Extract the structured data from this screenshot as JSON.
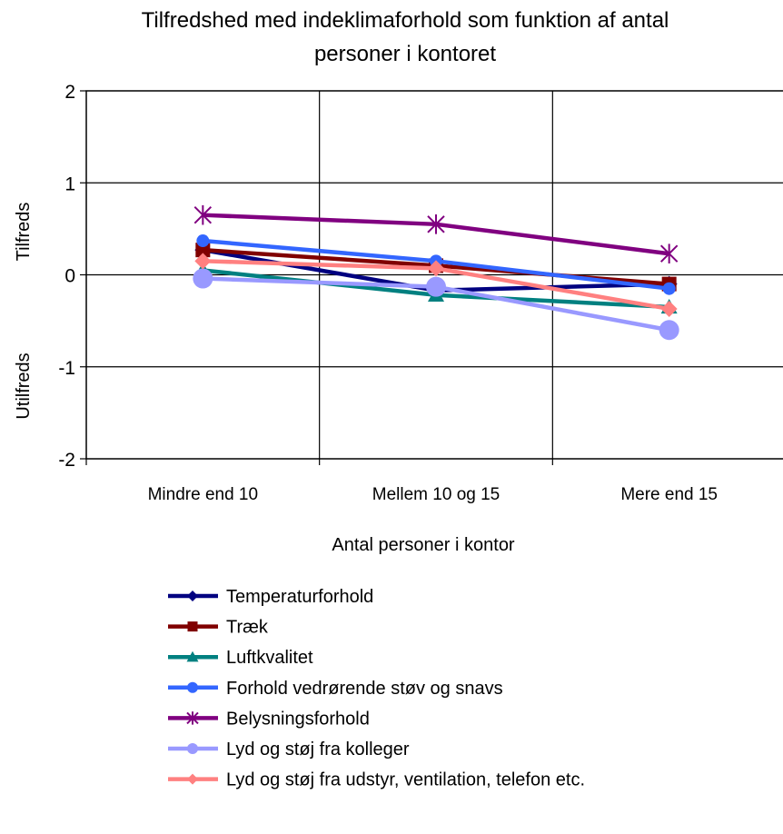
{
  "chart_data": {
    "type": "line",
    "title_lines": [
      "Tilfredshed med indeklimaforhold som funktion af antal",
      "personer i kontoret"
    ],
    "xlabel": "Antal personer i kontor",
    "ylabel_top": "Tilfreds",
    "ylabel_bottom": "Utilfreds",
    "categories": [
      "Mindre end 10",
      "Mellem 10 og 15",
      "Mere end 15"
    ],
    "ylim": [
      -2,
      2
    ],
    "yticks": [
      2,
      1,
      0,
      -1,
      -2
    ],
    "ytick_labels": [
      "2",
      "1",
      "0",
      "-1",
      "-2"
    ],
    "grid": true,
    "legend_position": "bottom",
    "series": [
      {
        "name": "Temperaturforhold",
        "values": [
          0.27,
          -0.17,
          -0.1
        ],
        "color": "#000080",
        "marker": "diamond"
      },
      {
        "name": "Træk",
        "values": [
          0.27,
          0.1,
          -0.1
        ],
        "color": "#800000",
        "marker": "square"
      },
      {
        "name": "Luftkvalitet",
        "values": [
          0.05,
          -0.22,
          -0.35
        ],
        "color": "#008080",
        "marker": "triangle"
      },
      {
        "name": "Forhold vedrørende støv og snavs",
        "values": [
          0.37,
          0.15,
          -0.15
        ],
        "color": "#3366ff",
        "marker": "circle"
      },
      {
        "name": "Belysningsforhold",
        "values": [
          0.65,
          0.55,
          0.23
        ],
        "color": "#800080",
        "marker": "star"
      },
      {
        "name": "Lyd og støj fra kolleger",
        "values": [
          -0.04,
          -0.13,
          -0.6
        ],
        "color": "#9999ff",
        "marker": "bigcircle"
      },
      {
        "name": "Lyd og støj fra udstyr, ventilation, telefon etc.",
        "values": [
          0.15,
          0.07,
          -0.37
        ],
        "color": "#ff8080",
        "marker": "diamond"
      }
    ]
  }
}
